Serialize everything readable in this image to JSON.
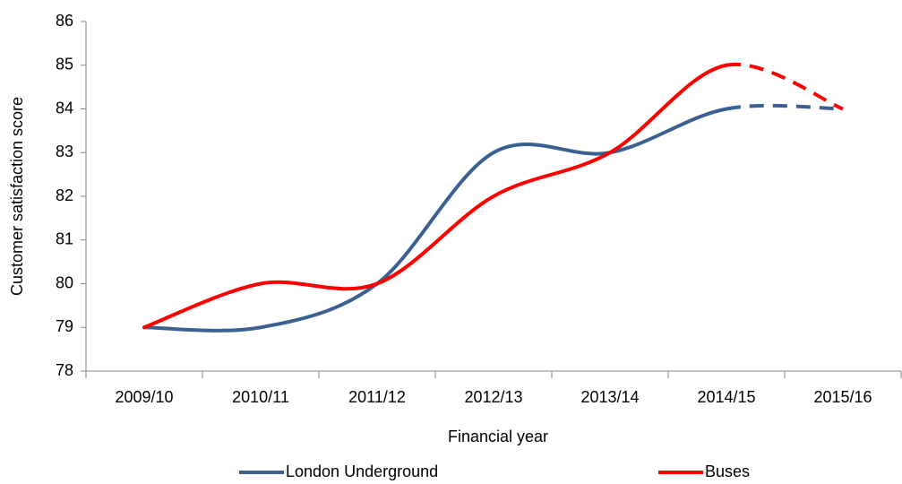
{
  "chart_data": {
    "type": "line",
    "categories": [
      "2009/10",
      "2010/11",
      "2011/12",
      "2012/13",
      "2013/14",
      "2014/15",
      "2015/16"
    ],
    "series": [
      {
        "name": "London Underground",
        "color": "#3b6192",
        "values": [
          79,
          79,
          80,
          83,
          83,
          84,
          84
        ]
      },
      {
        "name": "Buses",
        "color": "#ff0000",
        "values": [
          79,
          80,
          80,
          82,
          83,
          85,
          84
        ]
      }
    ],
    "dashed_from_index": 5,
    "smooth": true,
    "ylim": [
      78,
      86
    ],
    "yticks": [
      78,
      79,
      80,
      81,
      82,
      83,
      84,
      85,
      86
    ],
    "ylabel": "Customer satisfaction score",
    "xlabel": "Financial year",
    "grid": false,
    "legend": "bottom"
  }
}
